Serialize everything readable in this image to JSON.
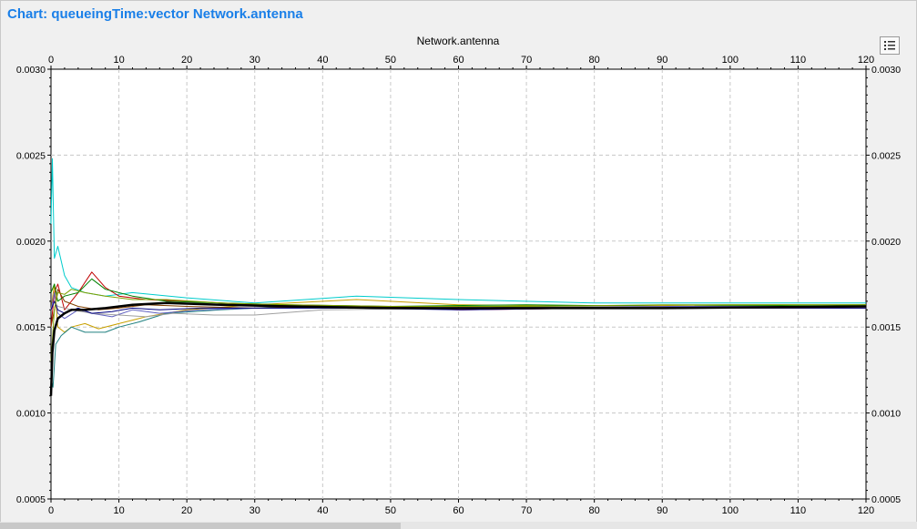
{
  "window": {
    "title": "Chart: queueingTime:vector Network.antenna"
  },
  "toolbar": {
    "legend_icon": "list-icon"
  },
  "colors": {
    "title": "#1a7fe8",
    "plot_background": "#ffffff",
    "panel_background": "#f0f0f0",
    "grid": "#c8c8c8"
  },
  "chart_data": {
    "type": "line",
    "title": "Network.antenna",
    "xlabel": "",
    "ylabel": "",
    "xlim": [
      0,
      120
    ],
    "ylim": [
      0.0005,
      0.003
    ],
    "x_ticks": [
      "0",
      "10",
      "20",
      "30",
      "40",
      "50",
      "60",
      "70",
      "80",
      "90",
      "100",
      "110",
      "120"
    ],
    "y_ticks": [
      "0.0005",
      "0.0010",
      "0.0015",
      "0.0020",
      "0.0025",
      "0.0030"
    ],
    "grid": true,
    "legend": "none",
    "series": [
      {
        "color": "#000000",
        "width": 2.5,
        "x": [
          0,
          0.2,
          0.5,
          1,
          2,
          3,
          5,
          8,
          12,
          17,
          25,
          35,
          50,
          70,
          90,
          120
        ],
        "y": [
          0.0011,
          0.00135,
          0.00148,
          0.00155,
          0.00158,
          0.0016,
          0.0016,
          0.00161,
          0.00163,
          0.00164,
          0.00163,
          0.00162,
          0.00161,
          0.00161,
          0.00161,
          0.00162
        ]
      },
      {
        "color": "#00cccc",
        "width": 1,
        "x": [
          0,
          0.2,
          0.5,
          1,
          2,
          3,
          5,
          8,
          12,
          20,
          30,
          45,
          60,
          80,
          100,
          120
        ],
        "y": [
          0.0021,
          0.00248,
          0.0019,
          0.00197,
          0.0018,
          0.00173,
          0.0017,
          0.00168,
          0.0017,
          0.00167,
          0.00164,
          0.00168,
          0.00166,
          0.00164,
          0.00164,
          0.00164
        ]
      },
      {
        "color": "#c8a000",
        "width": 1,
        "x": [
          0,
          0.5,
          1,
          2,
          3,
          5,
          7,
          10,
          14,
          20,
          30,
          45,
          60,
          80,
          100,
          120
        ],
        "y": [
          0.0016,
          0.00175,
          0.0015,
          0.00147,
          0.0015,
          0.00152,
          0.00149,
          0.00152,
          0.00156,
          0.0016,
          0.00163,
          0.00166,
          0.00163,
          0.00162,
          0.00163,
          0.00163
        ]
      },
      {
        "color": "#c00000",
        "width": 1,
        "x": [
          0,
          0.5,
          1,
          2,
          4,
          6,
          8,
          10,
          14,
          20,
          30,
          45,
          60,
          80,
          100,
          120
        ],
        "y": [
          0.0015,
          0.0017,
          0.00175,
          0.0016,
          0.0017,
          0.00182,
          0.00173,
          0.00168,
          0.00166,
          0.00165,
          0.00163,
          0.00162,
          0.0016,
          0.00161,
          0.00162,
          0.00162
        ]
      },
      {
        "color": "#008000",
        "width": 1,
        "x": [
          0,
          0.5,
          1,
          2,
          4,
          6,
          8,
          12,
          17,
          25,
          35,
          50,
          70,
          90,
          120
        ],
        "y": [
          0.0017,
          0.00175,
          0.00165,
          0.00168,
          0.0017,
          0.00178,
          0.00172,
          0.00168,
          0.00165,
          0.00164,
          0.00163,
          0.00162,
          0.00163,
          0.00162,
          0.00163
        ]
      },
      {
        "color": "#208080",
        "width": 1,
        "x": [
          0,
          0.3,
          0.7,
          1.5,
          3,
          5,
          8,
          10,
          13,
          17,
          25,
          35,
          50,
          70,
          90,
          120
        ],
        "y": [
          0.0012,
          0.00115,
          0.0014,
          0.00145,
          0.0015,
          0.00147,
          0.00147,
          0.0015,
          0.00153,
          0.00158,
          0.0016,
          0.00162,
          0.00162,
          0.00162,
          0.00161,
          0.00162
        ]
      },
      {
        "color": "#6060c0",
        "width": 1,
        "x": [
          0,
          0.5,
          1,
          2,
          4,
          6,
          9,
          12,
          16,
          22,
          30,
          45,
          60,
          80,
          100,
          120
        ],
        "y": [
          0.0016,
          0.0017,
          0.00158,
          0.00155,
          0.0016,
          0.00158,
          0.00156,
          0.0016,
          0.00158,
          0.0016,
          0.00161,
          0.00161,
          0.00161,
          0.00162,
          0.00162,
          0.00162
        ]
      },
      {
        "color": "#804000",
        "width": 1,
        "x": [
          0,
          0.5,
          1,
          2,
          4,
          7,
          10,
          14,
          20,
          30,
          45,
          60,
          80,
          100,
          120
        ],
        "y": [
          0.0015,
          0.0016,
          0.00172,
          0.00165,
          0.00162,
          0.0016,
          0.00161,
          0.00163,
          0.00162,
          0.00161,
          0.00162,
          0.00161,
          0.00162,
          0.00161,
          0.00161
        ]
      },
      {
        "color": "#a0a0a0",
        "width": 1,
        "x": [
          0,
          0.5,
          1,
          3,
          6,
          10,
          14,
          18,
          24,
          30,
          40,
          60,
          80,
          100,
          120
        ],
        "y": [
          0.0016,
          0.00165,
          0.00162,
          0.0016,
          0.00158,
          0.00157,
          0.00156,
          0.00158,
          0.00157,
          0.00157,
          0.0016,
          0.00161,
          0.00162,
          0.00161,
          0.00162
        ]
      },
      {
        "color": "#000080",
        "width": 1,
        "x": [
          0,
          0.5,
          1,
          2,
          4,
          6,
          9,
          12,
          16,
          22,
          30,
          45,
          60,
          80,
          100,
          120
        ],
        "y": [
          0.0016,
          0.00165,
          0.0016,
          0.00158,
          0.00161,
          0.00158,
          0.00159,
          0.00161,
          0.0016,
          0.00161,
          0.00161,
          0.00161,
          0.0016,
          0.00161,
          0.00161,
          0.00161
        ]
      },
      {
        "color": "#80a000",
        "width": 1,
        "x": [
          0,
          0.5,
          1,
          2,
          3,
          5,
          8,
          12,
          17,
          25,
          35,
          50,
          70,
          90,
          120
        ],
        "y": [
          0.0013,
          0.0016,
          0.0017,
          0.00169,
          0.00172,
          0.0017,
          0.00168,
          0.00166,
          0.00166,
          0.00164,
          0.00163,
          0.00162,
          0.00162,
          0.00163,
          0.00163
        ]
      }
    ]
  }
}
